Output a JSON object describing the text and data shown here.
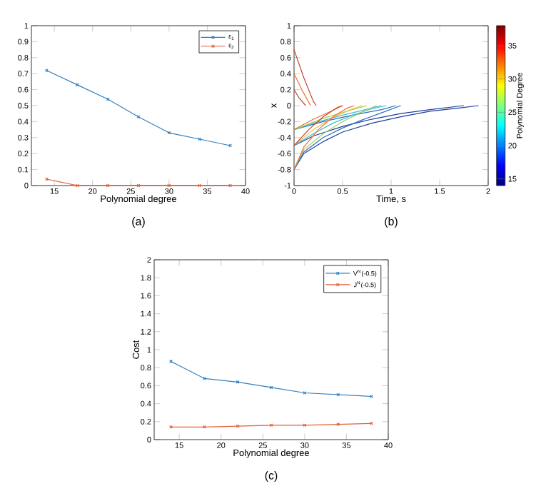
{
  "chart_data": [
    {
      "type": "line",
      "xlabel": "Polynomial degree",
      "annotations": [
        "(a)"
      ],
      "xlim": [
        12,
        40
      ],
      "xticks": [
        15,
        20,
        25,
        30,
        35,
        40
      ],
      "ylim": [
        0,
        1
      ],
      "yticks": [
        0,
        0.1,
        0.2,
        0.3,
        0.4,
        0.5,
        0.6,
        0.7,
        0.8,
        0.9,
        1
      ],
      "legend": "top right",
      "marker": "cross",
      "x": [
        14,
        18,
        22,
        26,
        30,
        34,
        38
      ],
      "series": [
        {
          "name": "ε$_{1}$",
          "color": "#2f7fc1",
          "values": [
            0.72,
            0.63,
            0.54,
            0.43,
            0.33,
            0.29,
            0.25
          ]
        },
        {
          "name": "ε$_{2}$",
          "color": "#e0603a",
          "values": [
            0.04,
            0,
            0,
            0,
            0,
            0,
            0
          ]
        }
      ]
    },
    {
      "type": "line",
      "xlabel": "Time, s",
      "ylabel": "x",
      "clabel": "Polynomial Degree",
      "annotations": [
        "(b)"
      ],
      "xlim": [
        0,
        2
      ],
      "xticks": [
        0,
        0.5,
        1,
        1.5,
        2
      ],
      "ylim": [
        -1,
        1
      ],
      "yticks": [
        -1,
        -0.8,
        -0.6,
        -0.4,
        -0.2,
        0,
        0.2,
        0.4,
        0.6,
        0.8,
        1
      ],
      "clim": [
        14,
        38
      ],
      "cticks": [
        15,
        20,
        25,
        30,
        35
      ],
      "series": [
        {
          "color": "#1f3d9c",
          "x": [
            0,
            0.1,
            0.3,
            0.5,
            0.8,
            1.1,
            1.4,
            1.7,
            1.9
          ],
          "values": [
            -0.8,
            -0.6,
            -0.45,
            -0.33,
            -0.22,
            -0.14,
            -0.07,
            -0.03,
            0
          ]
        },
        {
          "color": "#1f3d9c",
          "x": [
            0,
            0.2,
            0.5,
            0.8,
            1.1,
            1.4,
            1.75
          ],
          "values": [
            -0.5,
            -0.38,
            -0.26,
            -0.17,
            -0.1,
            -0.05,
            0
          ]
        },
        {
          "color": "#2b6fc0",
          "x": [
            0,
            0.1,
            0.3,
            0.5,
            0.7,
            0.9,
            1.1
          ],
          "values": [
            -0.8,
            -0.58,
            -0.4,
            -0.28,
            -0.18,
            -0.09,
            0
          ]
        },
        {
          "color": "#2b6fc0",
          "x": [
            0,
            0.3,
            0.6,
            0.9,
            1.05
          ],
          "values": [
            -0.3,
            -0.2,
            -0.12,
            -0.05,
            0
          ]
        },
        {
          "color": "#3fb8d8",
          "x": [
            0,
            0.2,
            0.4,
            0.6,
            0.8,
            0.95
          ],
          "values": [
            -0.5,
            -0.35,
            -0.22,
            -0.12,
            -0.04,
            0
          ]
        },
        {
          "color": "#3fb8d8",
          "x": [
            0,
            0.2,
            0.5,
            0.8,
            0.9
          ],
          "values": [
            -0.3,
            -0.22,
            -0.12,
            -0.03,
            0
          ]
        },
        {
          "color": "#9fd060",
          "x": [
            0,
            0.1,
            0.3,
            0.5,
            0.7,
            0.85
          ],
          "values": [
            -0.8,
            -0.55,
            -0.35,
            -0.2,
            -0.08,
            0
          ]
        },
        {
          "color": "#9fd060",
          "x": [
            0,
            0.3,
            0.6,
            0.75
          ],
          "values": [
            -0.3,
            -0.16,
            -0.05,
            0
          ]
        },
        {
          "color": "#f0c030",
          "x": [
            0,
            0.2,
            0.4,
            0.6,
            0.7
          ],
          "values": [
            -0.5,
            -0.3,
            -0.15,
            -0.04,
            0
          ]
        },
        {
          "color": "#e8702a",
          "x": [
            0,
            0.1,
            0.25,
            0.4,
            0.55,
            0.62
          ],
          "values": [
            -0.8,
            -0.52,
            -0.3,
            -0.14,
            -0.03,
            0
          ]
        },
        {
          "color": "#e8702a",
          "x": [
            0,
            0.2,
            0.4,
            0.5
          ],
          "values": [
            -0.3,
            -0.17,
            -0.06,
            0
          ]
        },
        {
          "color": "#c0452a",
          "x": [
            0,
            0.15,
            0.3,
            0.45,
            0.5
          ],
          "values": [
            -0.5,
            -0.3,
            -0.14,
            -0.02,
            0
          ]
        },
        {
          "color": "#c0452a",
          "x": [
            0,
            0.1,
            0.2,
            0.23
          ],
          "values": [
            0.7,
            0.35,
            0.05,
            0
          ]
        },
        {
          "color": "#e8702a",
          "x": [
            0,
            0.08,
            0.17
          ],
          "values": [
            0.4,
            0.2,
            0
          ]
        },
        {
          "color": "#c0452a",
          "x": [
            0,
            0.05,
            0.12
          ],
          "values": [
            0.2,
            0.1,
            0
          ]
        }
      ]
    },
    {
      "type": "line",
      "xlabel": "Polynomial degree",
      "ylabel": "Cost",
      "annotations": [
        "(c)"
      ],
      "xlim": [
        12,
        40
      ],
      "xticks": [
        15,
        20,
        25,
        30,
        35,
        40
      ],
      "ylim": [
        0,
        2
      ],
      "yticks": [
        0,
        0.2,
        0.4,
        0.6,
        0.8,
        1,
        1.2,
        1.4,
        1.6,
        1.8,
        2
      ],
      "legend": "top right",
      "marker": "cross",
      "x": [
        14,
        18,
        22,
        26,
        30,
        34,
        38
      ],
      "series": [
        {
          "name": "V$^{N}$(-0.5)",
          "color": "#2f7fc1",
          "values": [
            0.87,
            0.68,
            0.64,
            0.58,
            0.52,
            0.5,
            0.48
          ]
        },
        {
          "name": "J$^{N}$(-0.5)",
          "color": "#e0603a",
          "values": [
            0.14,
            0.14,
            0.15,
            0.16,
            0.16,
            0.17,
            0.18
          ]
        }
      ]
    }
  ]
}
